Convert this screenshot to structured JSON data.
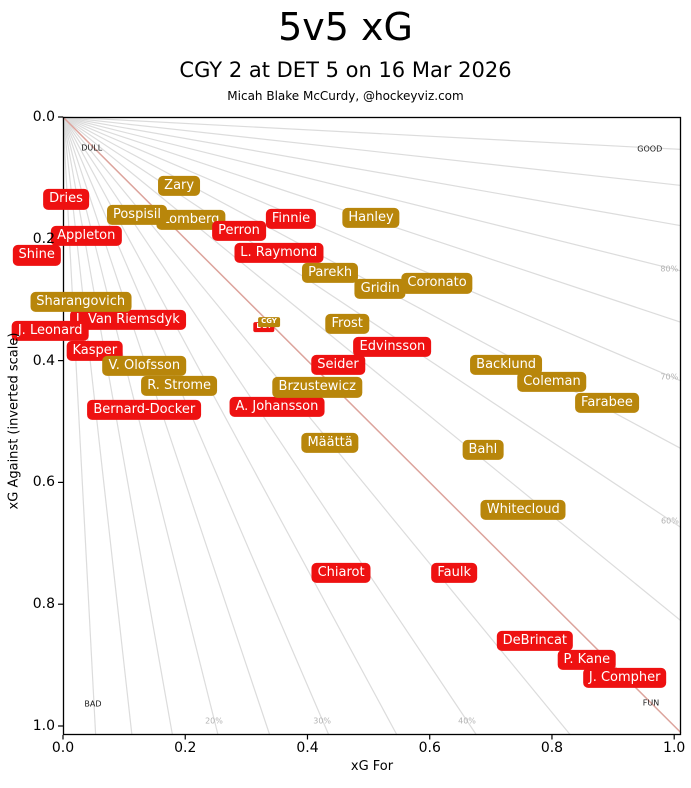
{
  "title": "5v5 xG",
  "subtitle": "CGY 2 at DET 5 on 16 Mar 2026",
  "credit": "Micah Blake McCurdy, @hockeyviz.com",
  "chart_data": {
    "type": "scatter",
    "title": "5v5 xG",
    "xlabel": "xG For",
    "ylabel": "xG Against (inverted scale)",
    "x_ticks": [
      "0.0",
      "0.2",
      "0.4",
      "0.6",
      "0.8",
      "1.0"
    ],
    "y_ticks": [
      "0.0",
      "0.2",
      "0.4",
      "0.6",
      "0.8",
      "1.0"
    ],
    "xlim": [
      0,
      1.011
    ],
    "ylim": [
      0,
      1.015
    ],
    "y_axis_inverted": true,
    "grid": "radial-share-fan",
    "colors": {
      "axis": "#000000",
      "gridline": "#dcdcdc",
      "fifty_line": "#dca39c",
      "pct_text": "#b3b3b3",
      "corner_text": "#1a1a1a"
    },
    "teams": {
      "CGY": {
        "color": "#b8860b"
      },
      "DET": {
        "color": "#ee1111"
      }
    },
    "share_gridlines": {
      "pct_min": 5,
      "pct_max": 95,
      "pct_step": 5,
      "fifty_pct": 50
    },
    "pct_labels": [
      {
        "text": "80%",
        "x": 0.992,
        "y": 0.25
      },
      {
        "text": "70%",
        "x": 0.992,
        "y": 0.427
      },
      {
        "text": "60%",
        "x": 0.993,
        "y": 0.663
      },
      {
        "text": "20%",
        "x": 0.247,
        "y": 0.992
      },
      {
        "text": "30%",
        "x": 0.424,
        "y": 0.992
      },
      {
        "text": "40%",
        "x": 0.661,
        "y": 0.992
      }
    ],
    "corner_labels": [
      {
        "text": "DULL",
        "x": 0.047,
        "y": 0.051
      },
      {
        "text": "GOOD",
        "x": 0.96,
        "y": 0.053
      },
      {
        "text": "BAD",
        "x": 0.049,
        "y": 0.964
      },
      {
        "text": "FUN",
        "x": 0.962,
        "y": 0.962
      }
    ],
    "players": [
      {
        "name": "Lomberg",
        "team": "CGY",
        "x": 0.209,
        "y": 0.169
      },
      {
        "name": "Zary",
        "team": "CGY",
        "x": 0.19,
        "y": 0.113
      },
      {
        "name": "Pospisil",
        "team": "CGY",
        "x": 0.121,
        "y": 0.161
      },
      {
        "name": "Finnie",
        "team": "DET",
        "x": 0.373,
        "y": 0.167
      },
      {
        "name": "Perron",
        "team": "DET",
        "x": 0.288,
        "y": 0.187
      },
      {
        "name": "L. Raymond",
        "team": "DET",
        "x": 0.353,
        "y": 0.223
      },
      {
        "name": "Parekh",
        "team": "CGY",
        "x": 0.437,
        "y": 0.256
      },
      {
        "name": "Hanley",
        "team": "CGY",
        "x": 0.504,
        "y": 0.166
      },
      {
        "name": "Dries",
        "team": "DET",
        "x": 0.005,
        "y": 0.135
      },
      {
        "name": "Appleton",
        "team": "DET",
        "x": 0.038,
        "y": 0.195
      },
      {
        "name": "Shine",
        "team": "DET",
        "x": -0.043,
        "y": 0.227
      },
      {
        "name": "J. Van Riemsdyk",
        "team": "DET",
        "x": 0.106,
        "y": 0.333
      },
      {
        "name": "Sharangovich",
        "team": "CGY",
        "x": 0.029,
        "y": 0.304
      },
      {
        "name": "J. Leonard",
        "team": "DET",
        "x": -0.021,
        "y": 0.351
      },
      {
        "name": "Kasper",
        "team": "DET",
        "x": 0.052,
        "y": 0.384
      },
      {
        "name": "V. Olofsson",
        "team": "CGY",
        "x": 0.133,
        "y": 0.409
      },
      {
        "name": "R. Strome",
        "team": "CGY",
        "x": 0.19,
        "y": 0.442
      },
      {
        "name": "Bernard-Docker",
        "team": "DET",
        "x": 0.133,
        "y": 0.481
      },
      {
        "name": "Gridin",
        "team": "CGY",
        "x": 0.519,
        "y": 0.282
      },
      {
        "name": "Coronato",
        "team": "CGY",
        "x": 0.612,
        "y": 0.273
      },
      {
        "name": "DET",
        "team": "DET",
        "x": 0.329,
        "y": 0.345,
        "small": true
      },
      {
        "name": "CGY",
        "team": "CGY",
        "x": 0.337,
        "y": 0.337,
        "small": true
      },
      {
        "name": "Frost",
        "team": "CGY",
        "x": 0.465,
        "y": 0.34
      },
      {
        "name": "Edvinsson",
        "team": "DET",
        "x": 0.539,
        "y": 0.378
      },
      {
        "name": "Seider",
        "team": "DET",
        "x": 0.45,
        "y": 0.407
      },
      {
        "name": "A. Johansson",
        "team": "DET",
        "x": 0.35,
        "y": 0.476
      },
      {
        "name": "Brzustewicz",
        "team": "CGY",
        "x": 0.416,
        "y": 0.444
      },
      {
        "name": "Backlund",
        "team": "CGY",
        "x": 0.725,
        "y": 0.407
      },
      {
        "name": "Coleman",
        "team": "CGY",
        "x": 0.8,
        "y": 0.435
      },
      {
        "name": "Farabee",
        "team": "CGY",
        "x": 0.89,
        "y": 0.469
      },
      {
        "name": "Määttä",
        "team": "CGY",
        "x": 0.437,
        "y": 0.535
      },
      {
        "name": "Bahl",
        "team": "CGY",
        "x": 0.687,
        "y": 0.547
      },
      {
        "name": "Whitecloud",
        "team": "CGY",
        "x": 0.753,
        "y": 0.645
      },
      {
        "name": "Chiarot",
        "team": "DET",
        "x": 0.455,
        "y": 0.749
      },
      {
        "name": "Faulk",
        "team": "DET",
        "x": 0.64,
        "y": 0.749
      },
      {
        "name": "DeBrincat",
        "team": "DET",
        "x": 0.772,
        "y": 0.86
      },
      {
        "name": "P. Kane",
        "team": "DET",
        "x": 0.857,
        "y": 0.891
      },
      {
        "name": "J. Compher",
        "team": "DET",
        "x": 0.919,
        "y": 0.921
      }
    ]
  }
}
